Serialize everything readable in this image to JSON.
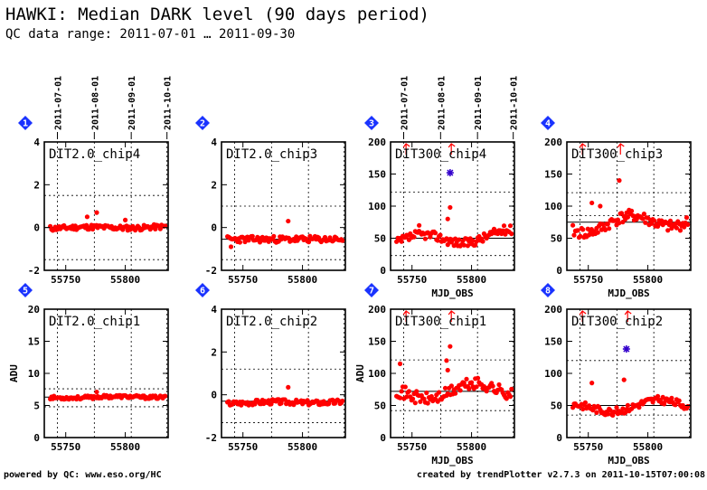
{
  "header": {
    "title": "HAWKI: Median DARK level (90 days period)",
    "subtitle": "QC data range: 2011-07-01 … 2011-09-30"
  },
  "footer": {
    "left": "powered by QC: www.eso.org/HC",
    "right": "created by trendPlotter v2.7.3 on 2011-10-15T07:00:08"
  },
  "colors": {
    "points": "#ff0000",
    "marker_badge": "#1a33ff",
    "outlier_star": "#3300cc",
    "frame": "#000000"
  },
  "chart_data": [
    {
      "id": "1",
      "type": "scatter",
      "label": "DIT2.0_chip4",
      "ylabel": "",
      "xlabel": "",
      "xlim": [
        55732,
        55836
      ],
      "ylim": [
        -2,
        4
      ],
      "yticks": [
        -2,
        0,
        2,
        4
      ],
      "ref_lines": [
        1.5,
        -1.5
      ],
      "mean": 0.0,
      "gen": {
        "base": 0.0,
        "amp": 0.12,
        "step": 0.05,
        "seed": 11
      },
      "outliers": [
        [
          55768,
          0.5
        ],
        [
          55776,
          0.7
        ],
        [
          55800,
          0.35
        ]
      ],
      "stars": [],
      "out_of_range": []
    },
    {
      "id": "2",
      "type": "scatter",
      "label": "DIT2.0_chip3",
      "ylabel": "",
      "xlabel": "",
      "xlim": [
        55732,
        55836
      ],
      "ylim": [
        -2,
        4
      ],
      "yticks": [
        -2,
        0,
        2,
        4
      ],
      "ref_lines": [
        1.0,
        -1.5
      ],
      "mean": -0.55,
      "gen": {
        "base": -0.55,
        "amp": 0.15,
        "step": 0.0,
        "seed": 23
      },
      "outliers": [
        [
          55788,
          0.3
        ],
        [
          55740,
          -0.9
        ]
      ],
      "stars": [],
      "out_of_range": []
    },
    {
      "id": "3",
      "type": "scatter",
      "label": "DIT300_chip4",
      "ylabel": "",
      "xlabel": "MJD_OBS",
      "xlim": [
        55732,
        55836
      ],
      "ylim": [
        0,
        200
      ],
      "yticks": [
        0,
        50,
        100,
        150,
        200
      ],
      "ref_lines": [
        122,
        23
      ],
      "mean": 50,
      "gen": {
        "base": 50,
        "amp": 7,
        "step": 14,
        "seed": 37
      },
      "outliers": [
        [
          55782,
          98
        ],
        [
          55780,
          80
        ],
        [
          55756,
          70
        ]
      ],
      "stars": [
        [
          55782,
          152
        ]
      ],
      "out_of_range": [
        55745,
        55783
      ]
    },
    {
      "id": "4",
      "type": "scatter",
      "label": "DIT300_chip3",
      "ylabel": "",
      "xlabel": "MJD_OBS",
      "xlim": [
        55732,
        55836
      ],
      "ylim": [
        0,
        200
      ],
      "yticks": [
        0,
        50,
        100,
        150,
        200
      ],
      "ref_lines": [
        121,
        85
      ],
      "mean": 75,
      "gen": {
        "base": 74,
        "amp": 9,
        "step": 18,
        "seed": 41
      },
      "outliers": [
        [
          55776,
          140
        ],
        [
          55753,
          105
        ],
        [
          55760,
          100
        ]
      ],
      "stars": [],
      "out_of_range": [
        55745,
        55777
      ]
    },
    {
      "id": "5",
      "type": "scatter",
      "label": "DIT2.0_chip1",
      "ylabel": "ADU",
      "xlabel": "",
      "xlim": [
        55732,
        55836
      ],
      "ylim": [
        0,
        20
      ],
      "yticks": [
        0,
        5,
        10,
        15,
        20
      ],
      "ref_lines": [
        7.6,
        4.8
      ],
      "mean": 6.3,
      "gen": {
        "base": 6.3,
        "amp": 0.25,
        "step": 0.15,
        "seed": 53
      },
      "outliers": [
        [
          55776,
          7.1
        ]
      ],
      "stars": [],
      "out_of_range": []
    },
    {
      "id": "6",
      "type": "scatter",
      "label": "DIT2.0_chip2",
      "ylabel": "",
      "xlabel": "",
      "xlim": [
        55732,
        55836
      ],
      "ylim": [
        -2,
        4
      ],
      "yticks": [
        -2,
        0,
        2,
        4
      ],
      "ref_lines": [
        1.2,
        -1.3
      ],
      "mean": -0.3,
      "gen": {
        "base": -0.35,
        "amp": 0.12,
        "step": 0.05,
        "seed": 67
      },
      "outliers": [
        [
          55788,
          0.35
        ]
      ],
      "stars": [],
      "out_of_range": []
    },
    {
      "id": "7",
      "type": "scatter",
      "label": "DIT300_chip1",
      "ylabel": "ADU",
      "xlabel": "MJD_OBS",
      "xlim": [
        55732,
        55836
      ],
      "ylim": [
        0,
        200
      ],
      "yticks": [
        0,
        50,
        100,
        150,
        200
      ],
      "ref_lines": [
        121,
        42
      ],
      "mean": 72,
      "gen": {
        "base": 72,
        "amp": 10,
        "step": 16,
        "seed": 71
      },
      "outliers": [
        [
          55782,
          142
        ],
        [
          55780,
          105
        ],
        [
          55779,
          120
        ],
        [
          55740,
          115
        ]
      ],
      "stars": [],
      "out_of_range": [
        55745,
        55783
      ]
    },
    {
      "id": "8",
      "type": "scatter",
      "label": "DIT300_chip2",
      "ylabel": "",
      "xlabel": "MJD_OBS",
      "xlim": [
        55732,
        55836
      ],
      "ylim": [
        0,
        200
      ],
      "yticks": [
        0,
        50,
        100,
        150,
        200
      ],
      "ref_lines": [
        120,
        35
      ],
      "mean": 50,
      "gen": {
        "base": 49,
        "amp": 6,
        "step": 12,
        "seed": 83
      },
      "outliers": [
        [
          55780,
          90
        ],
        [
          55753,
          85
        ]
      ],
      "stars": [
        [
          55782,
          138
        ]
      ],
      "out_of_range": [
        55745,
        55783
      ]
    }
  ],
  "x_axis": {
    "tick_values": [
      55750,
      55800
    ],
    "tick_labels": [
      "55750",
      "55800"
    ],
    "date_labels": [
      "2011-07-01",
      "2011-08-01",
      "2011-09-01",
      "2011-10-01"
    ],
    "date_mjd": [
      55743,
      55774,
      55805,
      55835
    ]
  }
}
